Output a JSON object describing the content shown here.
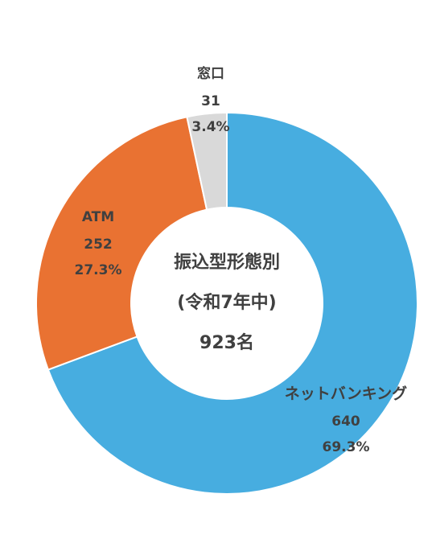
{
  "chart_data": {
    "type": "donut",
    "center_text": [
      "振込型形態別",
      "(令和7年中)",
      "923名"
    ],
    "categories": [
      "ネットバンキング",
      "ATM",
      "窓口"
    ],
    "values": [
      640,
      252,
      31
    ],
    "percentages": [
      69.3,
      27.3,
      3.4
    ],
    "percentage_labels": [
      "69.3%",
      "27.3%",
      "3.4%"
    ],
    "colors": [
      "#47ade0",
      "#e97232",
      "#d9d9d9"
    ]
  }
}
